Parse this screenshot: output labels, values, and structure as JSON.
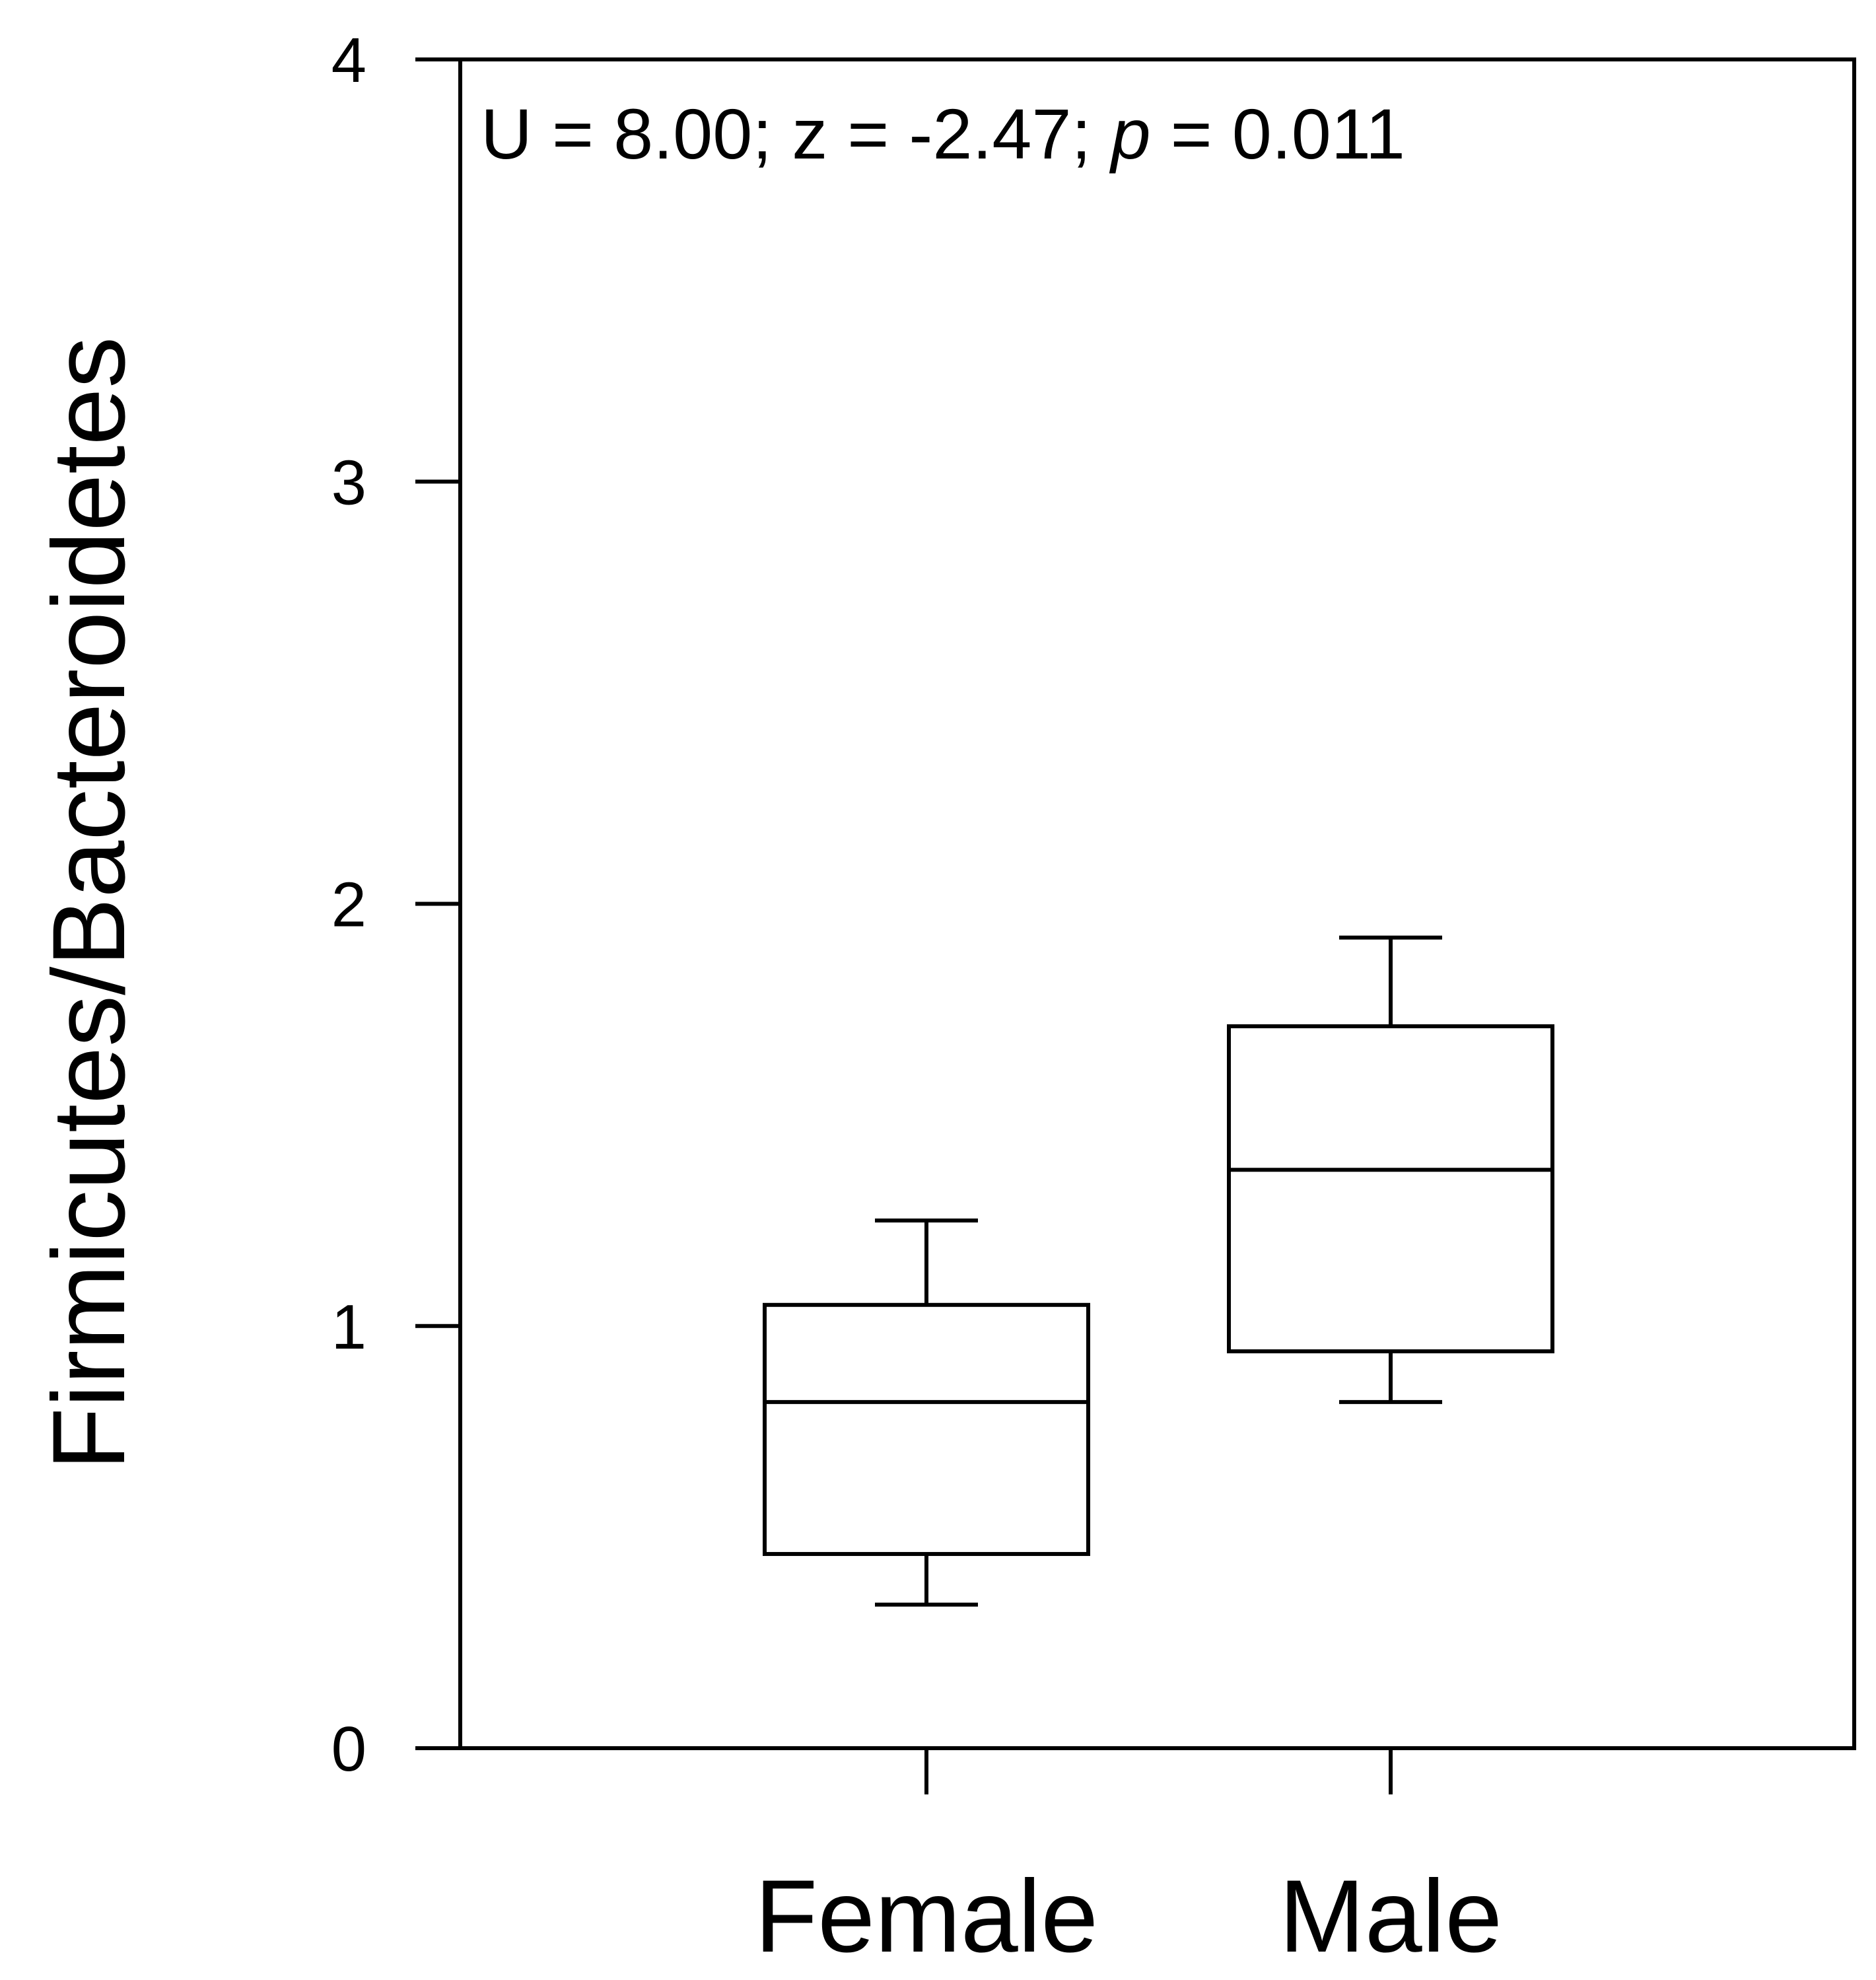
{
  "chart_data": {
    "type": "box",
    "ylabel": "Firmicutes/Bacteroidetes",
    "xlabel": "",
    "ylim": [
      0,
      4
    ],
    "yticks": [
      0,
      1,
      2,
      3,
      4
    ],
    "grid": false,
    "annotation": {
      "prefix": "U = 8.00; z = -2.47; ",
      "italic": "p",
      "suffix": " = 0.011"
    },
    "categories": [
      "Female",
      "Male"
    ],
    "boxes": [
      {
        "category": "Female",
        "whisker_low": 0.34,
        "q1": 0.46,
        "median": 0.82,
        "q3": 1.05,
        "whisker_high": 1.25
      },
      {
        "category": "Male",
        "whisker_low": 0.82,
        "q1": 0.94,
        "median": 1.37,
        "q3": 1.71,
        "whisker_high": 1.92
      }
    ],
    "colors": {
      "stroke": "#000000",
      "fill": "#ffffff"
    }
  }
}
